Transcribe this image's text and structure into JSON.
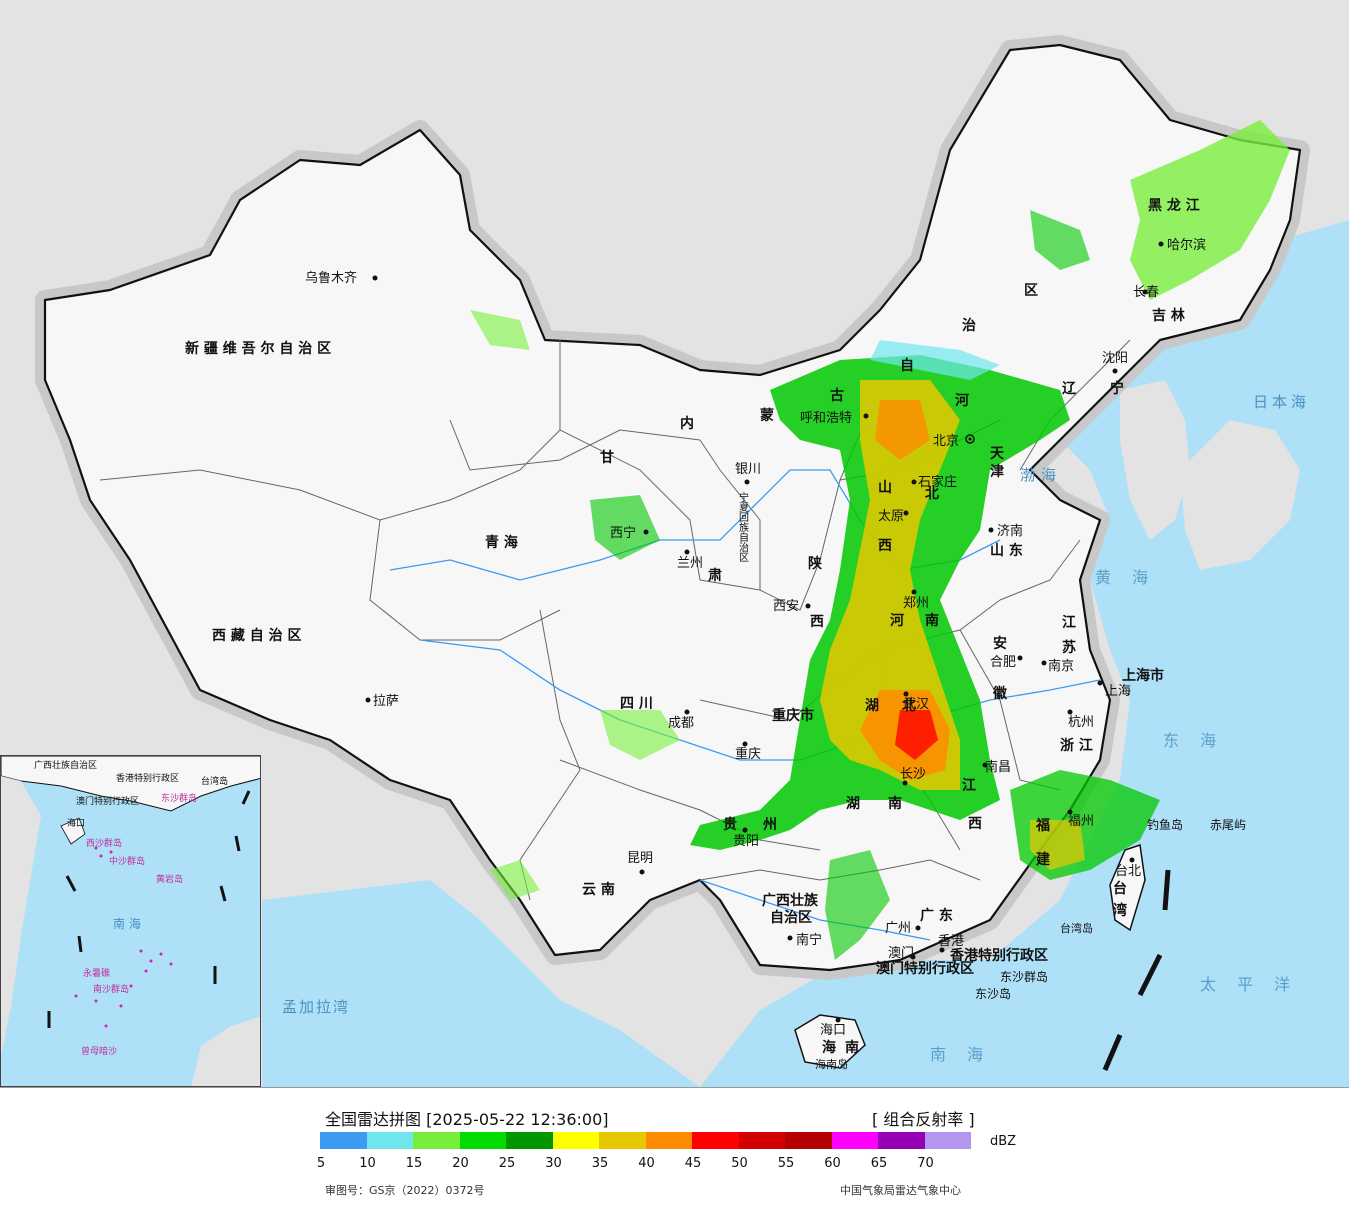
{
  "map": {
    "provinces": [
      {
        "id": "xinjiang",
        "text": "新 疆 维 吾 尔 自 治 区"
      },
      {
        "id": "xizang",
        "text": "西 藏 自 治 区"
      },
      {
        "id": "qinghai",
        "text": "青      海"
      },
      {
        "id": "gansu_gan",
        "text": "甘"
      },
      {
        "id": "gansu_su",
        "text": "肃"
      },
      {
        "id": "neimenggu_nei",
        "text": "内"
      },
      {
        "id": "neimenggu_meng",
        "text": "蒙"
      },
      {
        "id": "neimenggu_gu",
        "text": "古"
      },
      {
        "id": "neimenggu_zi",
        "text": "自"
      },
      {
        "id": "neimenggu_zhi",
        "text": "治"
      },
      {
        "id": "neimenggu_qu",
        "text": "区"
      },
      {
        "id": "ningxia",
        "text": "宁夏回族自治区"
      },
      {
        "id": "shaanxi_shan",
        "text": "陕"
      },
      {
        "id": "shaanxi_xi",
        "text": "西"
      },
      {
        "id": "shanxi_shan",
        "text": "山"
      },
      {
        "id": "shanxi_xi",
        "text": "西"
      },
      {
        "id": "hebei_he",
        "text": "河"
      },
      {
        "id": "hebei_bei",
        "text": "北"
      },
      {
        "id": "henan_he",
        "text": "河"
      },
      {
        "id": "henan_nan",
        "text": "南"
      },
      {
        "id": "shandong",
        "text": "山    东"
      },
      {
        "id": "sichuan",
        "text": "四      川"
      },
      {
        "id": "chongqing",
        "text": "重庆市"
      },
      {
        "id": "hubei_hu",
        "text": "湖"
      },
      {
        "id": "hubei_bei",
        "text": "北"
      },
      {
        "id": "hunan_hu",
        "text": "湖"
      },
      {
        "id": "hunan_nan",
        "text": "南"
      },
      {
        "id": "guizhou_gui",
        "text": "贵"
      },
      {
        "id": "guizhou_zhou",
        "text": "州"
      },
      {
        "id": "yunnan",
        "text": "云    南"
      },
      {
        "id": "guangxi_1",
        "text": "广西壮族"
      },
      {
        "id": "guangxi_2",
        "text": "自治区"
      },
      {
        "id": "guangdong",
        "text": "广    东"
      },
      {
        "id": "jiangxi_jiang",
        "text": "江"
      },
      {
        "id": "jiangxi_xi",
        "text": "西"
      },
      {
        "id": "fujian_fu",
        "text": "福"
      },
      {
        "id": "fujian_jian",
        "text": "建"
      },
      {
        "id": "zhejiang",
        "text": "浙  江"
      },
      {
        "id": "anhui_an",
        "text": "安"
      },
      {
        "id": "anhui_hui",
        "text": "徽"
      },
      {
        "id": "jiangsu_jiang",
        "text": "江"
      },
      {
        "id": "jiangsu_su",
        "text": "苏"
      },
      {
        "id": "shanghai",
        "text": "上海市"
      },
      {
        "id": "liaoning_liao",
        "text": "辽"
      },
      {
        "id": "liaoning_ning",
        "text": "宁"
      },
      {
        "id": "jilin",
        "text": "吉    林"
      },
      {
        "id": "heilongjiang",
        "text": "黑    龙    江"
      },
      {
        "id": "tianjin_tian",
        "text": "天"
      },
      {
        "id": "tianjin_jin",
        "text": "津"
      },
      {
        "id": "taiwan_tai",
        "text": "台"
      },
      {
        "id": "taiwan_wan",
        "text": "湾"
      },
      {
        "id": "hainan_hai",
        "text": "海"
      },
      {
        "id": "hainan_nan",
        "text": "南"
      },
      {
        "id": "hk",
        "text": "香港特别行政区"
      },
      {
        "id": "macau",
        "text": "澳门特别行政区"
      }
    ],
    "cities": [
      {
        "id": "urumqi",
        "text": "乌鲁木齐"
      },
      {
        "id": "lhasa",
        "text": "拉萨"
      },
      {
        "id": "xining",
        "text": "西宁"
      },
      {
        "id": "lanzhou",
        "text": "兰州"
      },
      {
        "id": "yinchuan",
        "text": "银川"
      },
      {
        "id": "hohhot",
        "text": "呼和浩特"
      },
      {
        "id": "beijing",
        "text": "北京"
      },
      {
        "id": "taiyuan",
        "text": "太原"
      },
      {
        "id": "shijiazhuang",
        "text": "石家庄"
      },
      {
        "id": "jinan",
        "text": "济南"
      },
      {
        "id": "zhengzhou",
        "text": "郑州"
      },
      {
        "id": "xian",
        "text": "西安"
      },
      {
        "id": "chengdu",
        "text": "成都"
      },
      {
        "id": "chongqing_c",
        "text": "重庆"
      },
      {
        "id": "wuhan",
        "text": "武汉"
      },
      {
        "id": "hefei",
        "text": "合肥"
      },
      {
        "id": "nanjing",
        "text": "南京"
      },
      {
        "id": "shanghai_c",
        "text": "上海"
      },
      {
        "id": "hangzhou",
        "text": "杭州"
      },
      {
        "id": "nanchang",
        "text": "南昌"
      },
      {
        "id": "changsha",
        "text": "长沙"
      },
      {
        "id": "guiyang",
        "text": "贵阳"
      },
      {
        "id": "kunming",
        "text": "昆明"
      },
      {
        "id": "nanning",
        "text": "南宁"
      },
      {
        "id": "guangzhou",
        "text": "广州"
      },
      {
        "id": "hongkong",
        "text": "香港"
      },
      {
        "id": "macao",
        "text": "澳门"
      },
      {
        "id": "fuzhou",
        "text": "福州"
      },
      {
        "id": "taibei",
        "text": "台北"
      },
      {
        "id": "haikou",
        "text": "海口"
      },
      {
        "id": "shenyang",
        "text": "沈阳"
      },
      {
        "id": "changchun",
        "text": "长春"
      },
      {
        "id": "harbin",
        "text": "哈尔滨"
      }
    ],
    "places": [
      {
        "id": "diaoyu",
        "text": "钓鱼岛"
      },
      {
        "id": "chiwei",
        "text": "赤尾屿"
      },
      {
        "id": "dongsha_qd",
        "text": "东沙群岛"
      },
      {
        "id": "dongsha_d",
        "text": "东沙岛"
      },
      {
        "id": "taiwan_island",
        "text": "台湾岛"
      },
      {
        "id": "hainan_island",
        "text": "海南岛"
      }
    ],
    "seas": [
      {
        "id": "bohai",
        "text": "渤海"
      },
      {
        "id": "huanghai",
        "text": "黄 海"
      },
      {
        "id": "donghai",
        "text": "东 海"
      },
      {
        "id": "nanhai",
        "text": "南 海"
      },
      {
        "id": "taipingyang",
        "text": "太 平 洋"
      },
      {
        "id": "riben",
        "text": "日本海"
      },
      {
        "id": "mengjiala",
        "text": "孟加拉湾"
      }
    ],
    "inset_labels": [
      {
        "id": "i_guangxi",
        "text": "广西壮族自治区"
      },
      {
        "id": "i_hk",
        "text": "香港特别行政区"
      },
      {
        "id": "i_macau",
        "text": "澳门特别行政区"
      },
      {
        "id": "i_haikou",
        "text": "海口"
      },
      {
        "id": "i_taiwan",
        "text": "台湾岛"
      },
      {
        "id": "i_dongsha",
        "text": "东沙群岛"
      },
      {
        "id": "i_xisha",
        "text": "西沙群岛"
      },
      {
        "id": "i_zhongsha",
        "text": "中沙群岛"
      },
      {
        "id": "i_huangyan",
        "text": "黄岩岛"
      },
      {
        "id": "i_nanhai",
        "text": "南 海"
      },
      {
        "id": "i_nansha",
        "text": "南沙群岛"
      },
      {
        "id": "i_yongshu",
        "text": "永暑礁"
      },
      {
        "id": "i_zengmu",
        "text": "曾母暗沙"
      }
    ]
  },
  "legend": {
    "title": "全国雷达拼图 [2025-05-22 12:36:00]",
    "product": "[ 组合反射率 ]",
    "unit": "dBZ",
    "colors": [
      "#3c9bf0",
      "#6ee6ee",
      "#78ee3c",
      "#00dc00",
      "#009600",
      "#ffff00",
      "#e6c800",
      "#ff8c00",
      "#ff0000",
      "#d20000",
      "#b40000",
      "#ff00ff",
      "#9600b4",
      "#b496ee"
    ],
    "ticks": [
      "5",
      "10",
      "15",
      "20",
      "25",
      "30",
      "35",
      "40",
      "45",
      "50",
      "55",
      "60",
      "65",
      "70"
    ],
    "review_no": "审图号：GS京（2022）0372号",
    "source": "中国气象局雷达气象中心"
  }
}
